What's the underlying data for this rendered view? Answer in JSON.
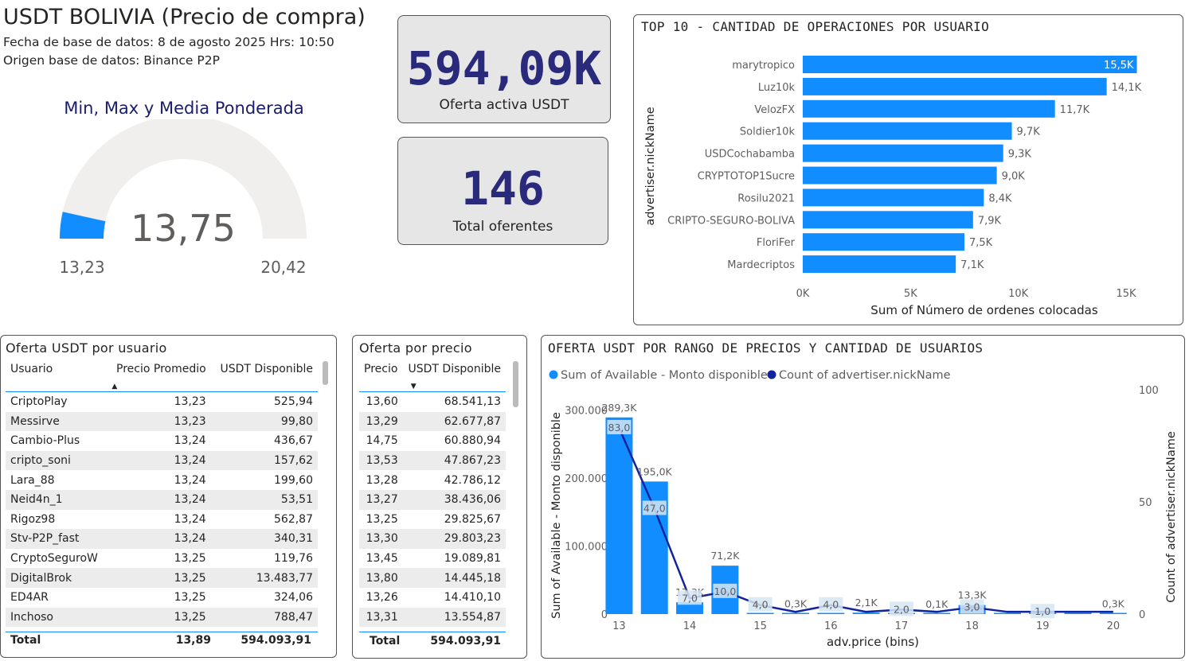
{
  "header": {
    "title": "USDT BOLIVIA (Precio de compra)",
    "date_line": "Fecha de base de datos: 8 de agosto 2025  Hrs: 10:50",
    "source_line": "Origen base de datos: Binance P2P"
  },
  "gauge": {
    "title": "Min, Max y Media Ponderada",
    "value": "13,75",
    "min": "13,23",
    "max": "20,42",
    "min_num": 13.23,
    "max_num": 20.42,
    "fill_fraction": 0.07,
    "fill_color": "#118dff",
    "track_color": "#f0efee"
  },
  "kpis": {
    "offer": {
      "value": "594,09K",
      "label": "Oferta activa USDT"
    },
    "bidders": {
      "value": "146",
      "label": "Total oferentes"
    }
  },
  "top10": {
    "title": "TOP 10 - CANTIDAD DE OPERACIONES POR USUARIO",
    "ylabel": "advertiser.nickName",
    "xlabel": "Sum of Número de ordenes colocadas",
    "ticks": [
      "0K",
      "5K",
      "10K",
      "15K"
    ]
  },
  "table_users": {
    "title": "Oferta USDT por usuario",
    "headers": [
      "Usuario",
      "Precio Promedio",
      "USDT Disponible"
    ],
    "rows": [
      [
        "CriptoPlay",
        "13,23",
        "525,94"
      ],
      [
        "Messirve",
        "13,23",
        "99,80"
      ],
      [
        "Cambio-Plus",
        "13,24",
        "436,67"
      ],
      [
        "cripto_soni",
        "13,24",
        "157,62"
      ],
      [
        "Lara_88",
        "13,24",
        "199,60"
      ],
      [
        "Neid4n_1",
        "13,24",
        "53,51"
      ],
      [
        "Rigoz98",
        "13,24",
        "562,87"
      ],
      [
        "Stv-P2P_fast",
        "13,24",
        "340,31"
      ],
      [
        "CryptoSeguroW",
        "13,25",
        "119,76"
      ],
      [
        "DigitalBrok",
        "13,25",
        "13.483,77"
      ],
      [
        "ED4AR",
        "13,25",
        "324,06"
      ],
      [
        "Inchoso",
        "13,25",
        "788,47"
      ]
    ],
    "total": [
      "Total",
      "13,89",
      "594.093,91"
    ]
  },
  "table_prices": {
    "title": "Oferta por precio",
    "headers": [
      "Precio",
      "USDT Disponible"
    ],
    "rows": [
      [
        "13,60",
        "68.541,13"
      ],
      [
        "13,29",
        "62.677,87"
      ],
      [
        "14,75",
        "60.880,94"
      ],
      [
        "13,53",
        "47.867,23"
      ],
      [
        "13,28",
        "42.786,12"
      ],
      [
        "13,27",
        "38.436,06"
      ],
      [
        "13,25",
        "29.825,67"
      ],
      [
        "13,30",
        "29.803,23"
      ],
      [
        "13,45",
        "19.089,81"
      ],
      [
        "13,80",
        "14.445,18"
      ],
      [
        "13,26",
        "14.410,10"
      ],
      [
        "13,31",
        "13.554,87"
      ]
    ],
    "total": [
      "Total",
      "594.093,91"
    ]
  },
  "combo": {
    "title": "OFERTA USDT POR RANGO DE PRECIOS Y CANTIDAD DE USUARIOS",
    "legend_bar": "Sum of Available - Monto disponible",
    "legend_line": "Count of advertiser.nickName",
    "ylabel_left": "Sum of Available - Monto disponible",
    "ylabel_right": "Count of advertiser.nickName",
    "xlabel": "adv.price (bins)",
    "left_ticks": [
      "0",
      "100.000",
      "200.000",
      "300.000"
    ],
    "right_ticks": [
      "0",
      "50",
      "100"
    ],
    "x_ticks": [
      "13",
      "14",
      "15",
      "16",
      "17",
      "18",
      "19",
      "20"
    ]
  },
  "chart_data": [
    {
      "type": "bar",
      "orientation": "horizontal",
      "title": "TOP 10 - CANTIDAD DE OPERACIONES POR USUARIO",
      "categories": [
        "marytropico",
        "Luz10k",
        "VelozFX",
        "Soldier10k",
        "USDCochabamba",
        "CRYPTOTOP1Sucre",
        "Rosilu2021",
        "CRIPTO-SEGURO-BOLIVA",
        "FloriFer",
        "Mardecriptos"
      ],
      "values": [
        15500,
        14100,
        11700,
        9700,
        9300,
        9000,
        8400,
        7900,
        7500,
        7100
      ],
      "labels": [
        "15,5K",
        "14,1K",
        "11,7K",
        "9,7K",
        "9,3K",
        "9,0K",
        "8,4K",
        "7,9K",
        "7,5K",
        "7,1K"
      ],
      "xlabel": "Sum of Número de ordenes colocadas",
      "ylabel": "advertiser.nickName",
      "xlim": [
        0,
        16000
      ],
      "color": "#118dff"
    },
    {
      "type": "bar",
      "subtype": "bar+line combo",
      "title": "OFERTA USDT POR RANGO DE PRECIOS Y CANTIDAD DE USUARIOS",
      "x": [
        13.0,
        13.5,
        14.0,
        14.5,
        15.0,
        15.5,
        16.0,
        16.5,
        17.0,
        17.5,
        18.0,
        18.5,
        19.0,
        19.5,
        20.0
      ],
      "series": [
        {
          "name": "Sum of Available - Monto disponible",
          "axis": "left",
          "values": [
            289300,
            195000,
            17300,
            71200,
            500,
            300,
            600,
            2100,
            200,
            100,
            13300,
            200,
            300,
            200,
            300
          ],
          "labels": [
            "289,3K",
            "195,0K",
            "17,3K",
            "71,2K",
            "",
            "0,3K",
            "",
            "2,1K",
            "",
            "0,1K",
            "13,3K",
            "",
            "",
            "",
            "0,3K"
          ],
          "color": "#118dff"
        },
        {
          "name": "Count of advertiser.nickName",
          "axis": "right",
          "type": "line",
          "values": [
            83,
            47,
            7,
            10,
            4,
            1,
            4,
            1,
            2,
            1,
            3,
            1,
            1,
            1,
            1
          ],
          "labels": [
            "83,0",
            "47,0",
            "7,0",
            "10,0",
            "4,0",
            "",
            "4,0",
            "",
            "2,0",
            "",
            "3,0",
            "",
            "1,0",
            "",
            ""
          ],
          "color": "#12239e"
        }
      ],
      "xlabel": "adv.price (bins)",
      "ylim_left": [
        0,
        330000
      ],
      "ylim_right": [
        0,
        100
      ]
    }
  ]
}
